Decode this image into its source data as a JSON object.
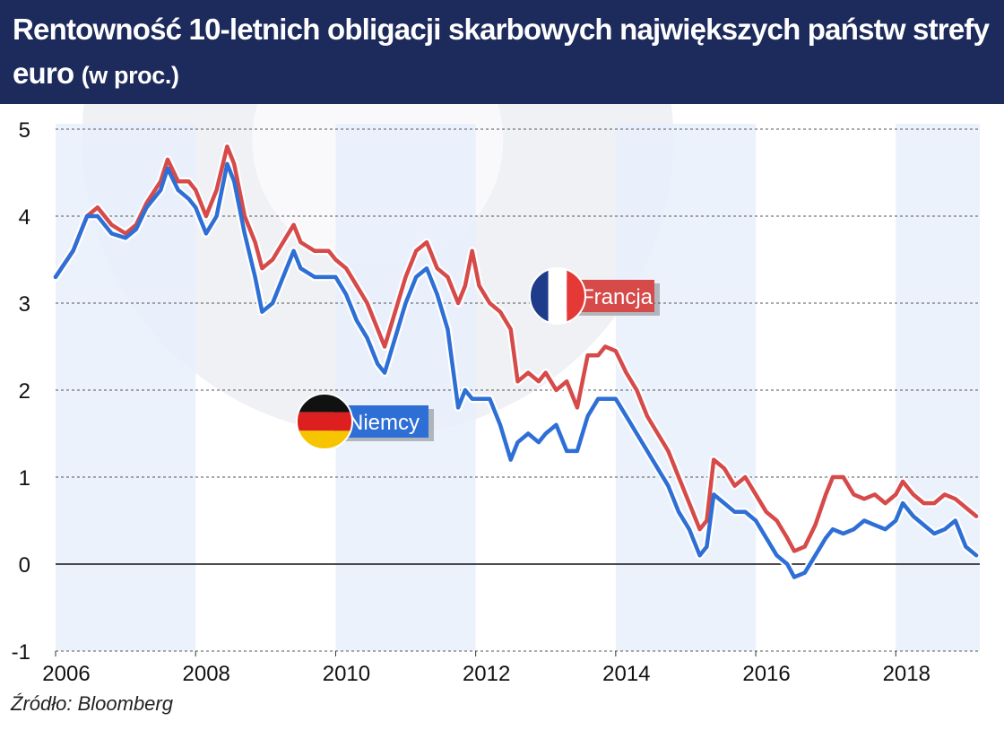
{
  "header": {
    "title": "Rentowność 10-letnich obligacji skarbowych największych państw strefy euro",
    "subtitle": "(w proc.)"
  },
  "source": "Źródło: Bloomberg",
  "colors": {
    "header_bg": "#1c2a5c",
    "francja": "#d64a4a",
    "niemcy": "#2e6fd6",
    "band": "#e8f0fb"
  },
  "chart_data": {
    "type": "line",
    "title": "Rentowność 10-letnich obligacji skarbowych największych państw strefy euro (w proc.)",
    "xlabel": "",
    "ylabel": "",
    "xlim": [
      2006,
      2019.2
    ],
    "ylim": [
      -1,
      5
    ],
    "x_ticks": [
      "2006",
      "2008",
      "2010",
      "2012",
      "2014",
      "2016",
      "2018"
    ],
    "y_ticks": [
      "-1",
      "0",
      "1",
      "2",
      "3",
      "4",
      "5"
    ],
    "grid": "horizontal dashed",
    "series": [
      {
        "name": "Francja",
        "color": "#d64a4a",
        "label_flag": "france-flag",
        "points": [
          [
            2006.0,
            3.3
          ],
          [
            2006.25,
            3.6
          ],
          [
            2006.45,
            4.0
          ],
          [
            2006.6,
            4.1
          ],
          [
            2006.8,
            3.9
          ],
          [
            2007.0,
            3.8
          ],
          [
            2007.15,
            3.9
          ],
          [
            2007.3,
            4.15
          ],
          [
            2007.5,
            4.4
          ],
          [
            2007.6,
            4.65
          ],
          [
            2007.75,
            4.4
          ],
          [
            2007.9,
            4.4
          ],
          [
            2008.0,
            4.3
          ],
          [
            2008.15,
            4.0
          ],
          [
            2008.3,
            4.3
          ],
          [
            2008.45,
            4.8
          ],
          [
            2008.55,
            4.6
          ],
          [
            2008.7,
            4.0
          ],
          [
            2008.85,
            3.7
          ],
          [
            2008.95,
            3.4
          ],
          [
            2009.1,
            3.5
          ],
          [
            2009.25,
            3.7
          ],
          [
            2009.4,
            3.9
          ],
          [
            2009.5,
            3.7
          ],
          [
            2009.7,
            3.6
          ],
          [
            2009.9,
            3.6
          ],
          [
            2010.0,
            3.5
          ],
          [
            2010.15,
            3.4
          ],
          [
            2010.3,
            3.2
          ],
          [
            2010.45,
            3.0
          ],
          [
            2010.6,
            2.7
          ],
          [
            2010.7,
            2.5
          ],
          [
            2010.85,
            2.9
          ],
          [
            2011.0,
            3.3
          ],
          [
            2011.15,
            3.6
          ],
          [
            2011.3,
            3.7
          ],
          [
            2011.45,
            3.4
          ],
          [
            2011.6,
            3.3
          ],
          [
            2011.75,
            3.0
          ],
          [
            2011.85,
            3.2
          ],
          [
            2011.95,
            3.6
          ],
          [
            2012.05,
            3.2
          ],
          [
            2012.2,
            3.0
          ],
          [
            2012.35,
            2.9
          ],
          [
            2012.5,
            2.7
          ],
          [
            2012.6,
            2.1
          ],
          [
            2012.75,
            2.2
          ],
          [
            2012.9,
            2.1
          ],
          [
            2013.0,
            2.2
          ],
          [
            2013.15,
            2.0
          ],
          [
            2013.3,
            2.1
          ],
          [
            2013.45,
            1.8
          ],
          [
            2013.6,
            2.4
          ],
          [
            2013.75,
            2.4
          ],
          [
            2013.85,
            2.5
          ],
          [
            2014.0,
            2.45
          ],
          [
            2014.15,
            2.2
          ],
          [
            2014.3,
            2.0
          ],
          [
            2014.45,
            1.7
          ],
          [
            2014.6,
            1.5
          ],
          [
            2014.75,
            1.3
          ],
          [
            2014.9,
            1.0
          ],
          [
            2015.05,
            0.7
          ],
          [
            2015.2,
            0.4
          ],
          [
            2015.3,
            0.5
          ],
          [
            2015.4,
            1.2
          ],
          [
            2015.55,
            1.1
          ],
          [
            2015.7,
            0.9
          ],
          [
            2015.85,
            1.0
          ],
          [
            2016.0,
            0.8
          ],
          [
            2016.15,
            0.6
          ],
          [
            2016.3,
            0.5
          ],
          [
            2016.45,
            0.3
          ],
          [
            2016.55,
            0.15
          ],
          [
            2016.7,
            0.2
          ],
          [
            2016.85,
            0.45
          ],
          [
            2017.0,
            0.8
          ],
          [
            2017.1,
            1.0
          ],
          [
            2017.25,
            1.0
          ],
          [
            2017.4,
            0.8
          ],
          [
            2017.55,
            0.75
          ],
          [
            2017.7,
            0.8
          ],
          [
            2017.85,
            0.7
          ],
          [
            2018.0,
            0.8
          ],
          [
            2018.1,
            0.95
          ],
          [
            2018.25,
            0.8
          ],
          [
            2018.4,
            0.7
          ],
          [
            2018.55,
            0.7
          ],
          [
            2018.7,
            0.8
          ],
          [
            2018.85,
            0.75
          ],
          [
            2019.0,
            0.65
          ],
          [
            2019.15,
            0.55
          ]
        ]
      },
      {
        "name": "Niemcy",
        "color": "#2e6fd6",
        "label_flag": "germany-flag",
        "points": [
          [
            2006.0,
            3.3
          ],
          [
            2006.25,
            3.6
          ],
          [
            2006.45,
            4.0
          ],
          [
            2006.6,
            4.0
          ],
          [
            2006.8,
            3.8
          ],
          [
            2007.0,
            3.75
          ],
          [
            2007.15,
            3.85
          ],
          [
            2007.3,
            4.1
          ],
          [
            2007.5,
            4.3
          ],
          [
            2007.6,
            4.55
          ],
          [
            2007.75,
            4.3
          ],
          [
            2007.9,
            4.2
          ],
          [
            2008.0,
            4.1
          ],
          [
            2008.15,
            3.8
          ],
          [
            2008.3,
            4.0
          ],
          [
            2008.45,
            4.6
          ],
          [
            2008.55,
            4.4
          ],
          [
            2008.7,
            3.8
          ],
          [
            2008.85,
            3.3
          ],
          [
            2008.95,
            2.9
          ],
          [
            2009.1,
            3.0
          ],
          [
            2009.25,
            3.3
          ],
          [
            2009.4,
            3.6
          ],
          [
            2009.5,
            3.4
          ],
          [
            2009.7,
            3.3
          ],
          [
            2009.9,
            3.3
          ],
          [
            2010.0,
            3.3
          ],
          [
            2010.15,
            3.1
          ],
          [
            2010.3,
            2.8
          ],
          [
            2010.45,
            2.6
          ],
          [
            2010.6,
            2.3
          ],
          [
            2010.7,
            2.2
          ],
          [
            2010.85,
            2.6
          ],
          [
            2011.0,
            3.0
          ],
          [
            2011.15,
            3.3
          ],
          [
            2011.3,
            3.4
          ],
          [
            2011.45,
            3.1
          ],
          [
            2011.6,
            2.7
          ],
          [
            2011.75,
            1.8
          ],
          [
            2011.85,
            2.0
          ],
          [
            2011.95,
            1.9
          ],
          [
            2012.05,
            1.9
          ],
          [
            2012.2,
            1.9
          ],
          [
            2012.35,
            1.6
          ],
          [
            2012.5,
            1.2
          ],
          [
            2012.6,
            1.4
          ],
          [
            2012.75,
            1.5
          ],
          [
            2012.9,
            1.4
          ],
          [
            2013.0,
            1.5
          ],
          [
            2013.15,
            1.6
          ],
          [
            2013.3,
            1.3
          ],
          [
            2013.45,
            1.3
          ],
          [
            2013.6,
            1.7
          ],
          [
            2013.75,
            1.9
          ],
          [
            2013.85,
            1.9
          ],
          [
            2014.0,
            1.9
          ],
          [
            2014.15,
            1.7
          ],
          [
            2014.3,
            1.5
          ],
          [
            2014.45,
            1.3
          ],
          [
            2014.6,
            1.1
          ],
          [
            2014.75,
            0.9
          ],
          [
            2014.9,
            0.6
          ],
          [
            2015.05,
            0.4
          ],
          [
            2015.2,
            0.1
          ],
          [
            2015.3,
            0.2
          ],
          [
            2015.4,
            0.8
          ],
          [
            2015.55,
            0.7
          ],
          [
            2015.7,
            0.6
          ],
          [
            2015.85,
            0.6
          ],
          [
            2016.0,
            0.5
          ],
          [
            2016.15,
            0.3
          ],
          [
            2016.3,
            0.1
          ],
          [
            2016.45,
            0.0
          ],
          [
            2016.55,
            -0.15
          ],
          [
            2016.7,
            -0.1
          ],
          [
            2016.85,
            0.1
          ],
          [
            2017.0,
            0.3
          ],
          [
            2017.1,
            0.4
          ],
          [
            2017.25,
            0.35
          ],
          [
            2017.4,
            0.4
          ],
          [
            2017.55,
            0.5
          ],
          [
            2017.7,
            0.45
          ],
          [
            2017.85,
            0.4
          ],
          [
            2018.0,
            0.5
          ],
          [
            2018.1,
            0.7
          ],
          [
            2018.25,
            0.55
          ],
          [
            2018.4,
            0.45
          ],
          [
            2018.55,
            0.35
          ],
          [
            2018.7,
            0.4
          ],
          [
            2018.85,
            0.5
          ],
          [
            2019.0,
            0.2
          ],
          [
            2019.15,
            0.1
          ]
        ]
      }
    ]
  }
}
